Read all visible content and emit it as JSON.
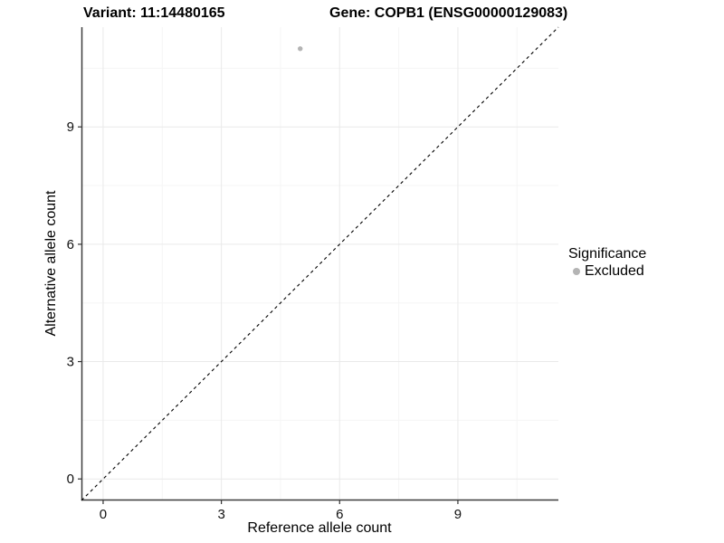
{
  "chart_data": {
    "type": "scatter",
    "title_left": "Variant: 11:14480165",
    "title_right": "Gene: COPB1 (ENSG00000129083)",
    "xlabel": "Reference allele count",
    "ylabel": "Alternative allele count",
    "xlim": [
      -0.55,
      11.55
    ],
    "ylim": [
      -0.55,
      11.55
    ],
    "x_ticks": [
      0,
      3,
      6,
      9
    ],
    "y_ticks": [
      0,
      3,
      6,
      9
    ],
    "x_minor_ticks": [
      1.5,
      4.5,
      7.5,
      10.5
    ],
    "y_minor_ticks": [
      1.5,
      4.5,
      7.5,
      10.5
    ],
    "grid": true,
    "points": [
      {
        "x": 5,
        "y": 11,
        "series": "Excluded"
      }
    ],
    "identity_line": {
      "slope": 1,
      "intercept": 0,
      "style": "dashed"
    },
    "legend": {
      "title": "Significance",
      "position": "right",
      "items": [
        {
          "label": "Excluded",
          "color": "#b4b4b4"
        }
      ]
    },
    "colors": {
      "point": "#b4b4b4",
      "identity_line": "#000000",
      "axis_line": "#3d3d3d",
      "tick_mark": "#333333",
      "grid_major": "#e9e9e9",
      "grid_minor": "#f5f5f5",
      "text": "#111111",
      "background": "#ffffff"
    }
  }
}
